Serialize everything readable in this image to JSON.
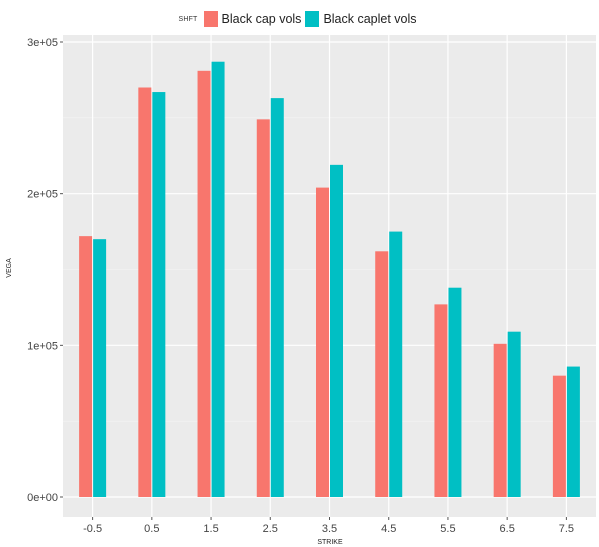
{
  "legend": {
    "title": "SHFT",
    "items": [
      {
        "label": "Black cap vols",
        "color": "#F8766D"
      },
      {
        "label": "Black caplet vols",
        "color": "#00BFC4"
      }
    ]
  },
  "chart_data": {
    "type": "bar",
    "title": "",
    "xlabel": "STRIKE",
    "ylabel": "VEGA",
    "categories": [
      "-0.5",
      "0.5",
      "1.5",
      "2.5",
      "3.5",
      "4.5",
      "5.5",
      "6.5",
      "7.5"
    ],
    "series": [
      {
        "name": "Black cap vols",
        "color": "#F8766D",
        "values": [
          172000,
          270000,
          281000,
          249000,
          204000,
          162000,
          127000,
          101000,
          80000
        ]
      },
      {
        "name": "Black caplet vols",
        "color": "#00BFC4",
        "values": [
          170000,
          267000,
          287000,
          263000,
          219000,
          175000,
          138000,
          109000,
          86000
        ]
      }
    ],
    "ylim": [
      0,
      300000
    ],
    "yticks": [
      0,
      100000,
      200000,
      300000
    ],
    "ytick_labels": [
      "0e+00",
      "1e+05",
      "2e+05",
      "3e+05"
    ],
    "grid": true,
    "legend_position": "top",
    "panel_background": "#EBEBEB"
  }
}
